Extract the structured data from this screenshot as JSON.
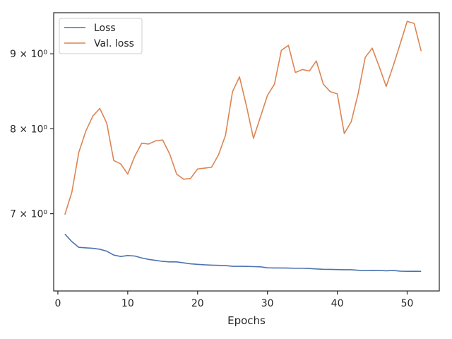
{
  "chart_data": {
    "type": "line",
    "title": "",
    "xlabel": "Epochs",
    "ylabel": "",
    "xlim": [
      -0.6,
      54.6
    ],
    "ylim": [
      6.2,
      9.6
    ],
    "yscale": "log",
    "grid": false,
    "legend_position": "top-left",
    "x_ticks": [
      0,
      10,
      20,
      30,
      40,
      50
    ],
    "x_tick_labels": [
      "0",
      "10",
      "20",
      "30",
      "40",
      "50"
    ],
    "y_ticks": [
      7,
      8,
      9
    ],
    "y_tick_labels": [
      "7 × 10⁰",
      "8 × 10⁰",
      "9 × 10⁰"
    ],
    "x": [
      1,
      2,
      3,
      4,
      5,
      6,
      7,
      8,
      9,
      10,
      11,
      12,
      13,
      14,
      15,
      16,
      17,
      18,
      19,
      20,
      21,
      22,
      23,
      24,
      25,
      26,
      27,
      28,
      29,
      30,
      31,
      32,
      33,
      34,
      35,
      36,
      37,
      38,
      39,
      40,
      41,
      42,
      43,
      44,
      45,
      46,
      47,
      48,
      49,
      50,
      51,
      52
    ],
    "series": [
      {
        "name": "Loss",
        "color": "#4c72b0",
        "values": [
          6.78,
          6.7,
          6.64,
          6.635,
          6.63,
          6.62,
          6.6,
          6.56,
          6.545,
          6.555,
          6.55,
          6.53,
          6.515,
          6.505,
          6.495,
          6.49,
          6.49,
          6.48,
          6.47,
          6.465,
          6.46,
          6.457,
          6.455,
          6.452,
          6.445,
          6.445,
          6.444,
          6.442,
          6.44,
          6.43,
          6.428,
          6.428,
          6.427,
          6.425,
          6.425,
          6.423,
          6.418,
          6.415,
          6.414,
          6.412,
          6.41,
          6.41,
          6.405,
          6.402,
          6.404,
          6.403,
          6.4,
          6.403,
          6.396,
          6.394,
          6.395,
          6.394
        ]
      },
      {
        "name": "Val. loss",
        "color": "#dd8452",
        "values": [
          6.99,
          7.24,
          7.71,
          7.97,
          8.16,
          8.26,
          8.07,
          7.61,
          7.57,
          7.45,
          7.66,
          7.82,
          7.81,
          7.85,
          7.86,
          7.69,
          7.45,
          7.39,
          7.4,
          7.51,
          7.52,
          7.53,
          7.68,
          7.92,
          8.48,
          8.68,
          8.29,
          7.88,
          8.15,
          8.43,
          8.58,
          9.05,
          9.12,
          8.74,
          8.78,
          8.76,
          8.9,
          8.58,
          8.48,
          8.45,
          7.94,
          8.09,
          8.46,
          8.95,
          9.08,
          8.82,
          8.55,
          8.83,
          9.14,
          9.47,
          9.44,
          9.04
        ]
      }
    ]
  }
}
